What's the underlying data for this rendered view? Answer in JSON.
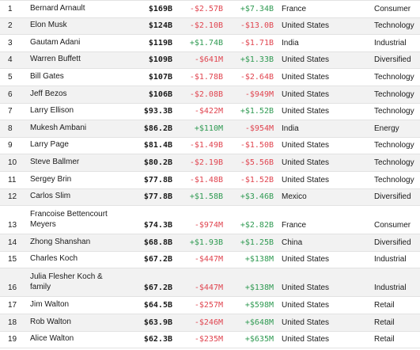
{
  "rows": [
    {
      "rank": "1",
      "name": "Bernard Arnault",
      "worth": "$169B",
      "change_day": "-$2.57B",
      "change_ytd": "+$7.34B",
      "country": "France",
      "industry": "Consumer"
    },
    {
      "rank": "2",
      "name": "Elon Musk",
      "worth": "$124B",
      "change_day": "-$2.10B",
      "change_ytd": "-$13.0B",
      "country": "United States",
      "industry": "Technology"
    },
    {
      "rank": "3",
      "name": "Gautam Adani",
      "worth": "$119B",
      "change_day": "+$1.74B",
      "change_ytd": "-$1.71B",
      "country": "India",
      "industry": "Industrial"
    },
    {
      "rank": "4",
      "name": "Warren Buffett",
      "worth": "$109B",
      "change_day": "-$641M",
      "change_ytd": "+$1.33B",
      "country": "United States",
      "industry": "Diversified"
    },
    {
      "rank": "5",
      "name": "Bill Gates",
      "worth": "$107B",
      "change_day": "-$1.78B",
      "change_ytd": "-$2.64B",
      "country": "United States",
      "industry": "Technology"
    },
    {
      "rank": "6",
      "name": "Jeff Bezos",
      "worth": "$106B",
      "change_day": "-$2.08B",
      "change_ytd": "-$949M",
      "country": "United States",
      "industry": "Technology"
    },
    {
      "rank": "7",
      "name": "Larry Ellison",
      "worth": "$93.3B",
      "change_day": "-$422M",
      "change_ytd": "+$1.52B",
      "country": "United States",
      "industry": "Technology"
    },
    {
      "rank": "8",
      "name": "Mukesh Ambani",
      "worth": "$86.2B",
      "change_day": "+$110M",
      "change_ytd": "-$954M",
      "country": "India",
      "industry": "Energy"
    },
    {
      "rank": "9",
      "name": "Larry Page",
      "worth": "$81.4B",
      "change_day": "-$1.49B",
      "change_ytd": "-$1.50B",
      "country": "United States",
      "industry": "Technology"
    },
    {
      "rank": "10",
      "name": "Steve Ballmer",
      "worth": "$80.2B",
      "change_day": "-$2.19B",
      "change_ytd": "-$5.56B",
      "country": "United States",
      "industry": "Technology"
    },
    {
      "rank": "11",
      "name": "Sergey Brin",
      "worth": "$77.8B",
      "change_day": "-$1.48B",
      "change_ytd": "-$1.52B",
      "country": "United States",
      "industry": "Technology"
    },
    {
      "rank": "12",
      "name": "Carlos Slim",
      "worth": "$77.8B",
      "change_day": "+$1.58B",
      "change_ytd": "+$3.46B",
      "country": "Mexico",
      "industry": "Diversified"
    },
    {
      "rank": "13",
      "name": "Francoise Bettencourt Meyers",
      "worth": "$74.3B",
      "change_day": "-$974M",
      "change_ytd": "+$2.82B",
      "country": "France",
      "industry": "Consumer"
    },
    {
      "rank": "14",
      "name": "Zhong Shanshan",
      "worth": "$68.8B",
      "change_day": "+$1.93B",
      "change_ytd": "+$1.25B",
      "country": "China",
      "industry": "Diversified"
    },
    {
      "rank": "15",
      "name": "Charles Koch",
      "worth": "$67.2B",
      "change_day": "-$447M",
      "change_ytd": "+$138M",
      "country": "United States",
      "industry": "Industrial"
    },
    {
      "rank": "16",
      "name": "Julia Flesher Koch & family",
      "worth": "$67.2B",
      "change_day": "-$447M",
      "change_ytd": "+$138M",
      "country": "United States",
      "industry": "Industrial"
    },
    {
      "rank": "17",
      "name": "Jim Walton",
      "worth": "$64.5B",
      "change_day": "-$257M",
      "change_ytd": "+$598M",
      "country": "United States",
      "industry": "Retail"
    },
    {
      "rank": "18",
      "name": "Rob Walton",
      "worth": "$63.9B",
      "change_day": "-$246M",
      "change_ytd": "+$648M",
      "country": "United States",
      "industry": "Retail"
    },
    {
      "rank": "19",
      "name": "Alice Walton",
      "worth": "$62.3B",
      "change_day": "-$235M",
      "change_ytd": "+$635M",
      "country": "United States",
      "industry": "Retail"
    }
  ],
  "colors": {
    "negative": "#e0444f",
    "positive": "#2f9a52",
    "row_alt": "#f2f2f2"
  }
}
